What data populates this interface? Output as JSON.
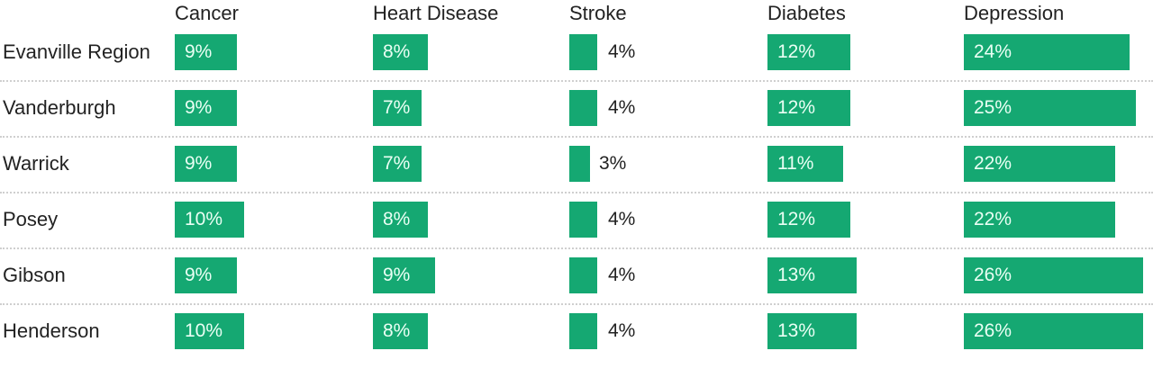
{
  "chart_data": {
    "type": "table",
    "title": "",
    "categories": [
      "Evanville Region",
      "Vanderburgh",
      "Warrick",
      "Posey",
      "Gibson",
      "Henderson"
    ],
    "columns": [
      "Cancer",
      "Heart Disease",
      "Stroke",
      "Diabetes",
      "Depression"
    ],
    "series": [
      {
        "name": "Cancer",
        "values": [
          9,
          9,
          9,
          10,
          9,
          10
        ]
      },
      {
        "name": "Heart Disease",
        "values": [
          8,
          7,
          7,
          8,
          9,
          8
        ]
      },
      {
        "name": "Stroke",
        "values": [
          4,
          4,
          3,
          4,
          4,
          4
        ]
      },
      {
        "name": "Diabetes",
        "values": [
          12,
          12,
          11,
          12,
          13,
          13
        ]
      },
      {
        "name": "Depression",
        "values": [
          24,
          25,
          22,
          22,
          26,
          26
        ]
      }
    ],
    "unit": "%",
    "bar_color": "#15a872"
  },
  "headers": [
    "Cancer",
    "Heart Disease",
    "Stroke",
    "Diabetes",
    "Depression"
  ],
  "rows": [
    {
      "label": "Evanville Region",
      "cells": [
        "9%",
        "8%",
        "4%",
        "12%",
        "24%"
      ]
    },
    {
      "label": "Vanderburgh",
      "cells": [
        "9%",
        "7%",
        "4%",
        "12%",
        "25%"
      ]
    },
    {
      "label": "Warrick",
      "cells": [
        "9%",
        "7%",
        "3%",
        "11%",
        "22%"
      ]
    },
    {
      "label": "Posey",
      "cells": [
        "10%",
        "8%",
        "4%",
        "12%",
        "22%"
      ]
    },
    {
      "label": "Gibson",
      "cells": [
        "9%",
        "9%",
        "4%",
        "13%",
        "26%"
      ]
    },
    {
      "label": "Henderson",
      "cells": [
        "10%",
        "8%",
        "4%",
        "13%",
        "26%"
      ]
    }
  ]
}
